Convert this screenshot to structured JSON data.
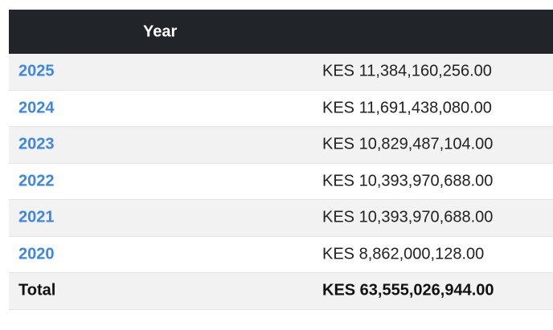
{
  "table": {
    "header": {
      "year_label": "Year"
    },
    "rows": [
      {
        "year": "2025",
        "amount": "KES 11,384,160,256.00"
      },
      {
        "year": "2024",
        "amount": "KES 11,691,438,080.00"
      },
      {
        "year": "2023",
        "amount": "KES 10,829,487,104.00"
      },
      {
        "year": "2022",
        "amount": "KES 10,393,970,688.00"
      },
      {
        "year": "2021",
        "amount": "KES 10,393,970,688.00"
      },
      {
        "year": "2020",
        "amount": "KES 8,862,000,128.00"
      }
    ],
    "total": {
      "label": "Total",
      "amount": "KES 63,555,026,944.00"
    }
  },
  "colors": {
    "header_bg": "#212428",
    "link": "#3b86e6",
    "stripe": "#f2f2f2"
  }
}
